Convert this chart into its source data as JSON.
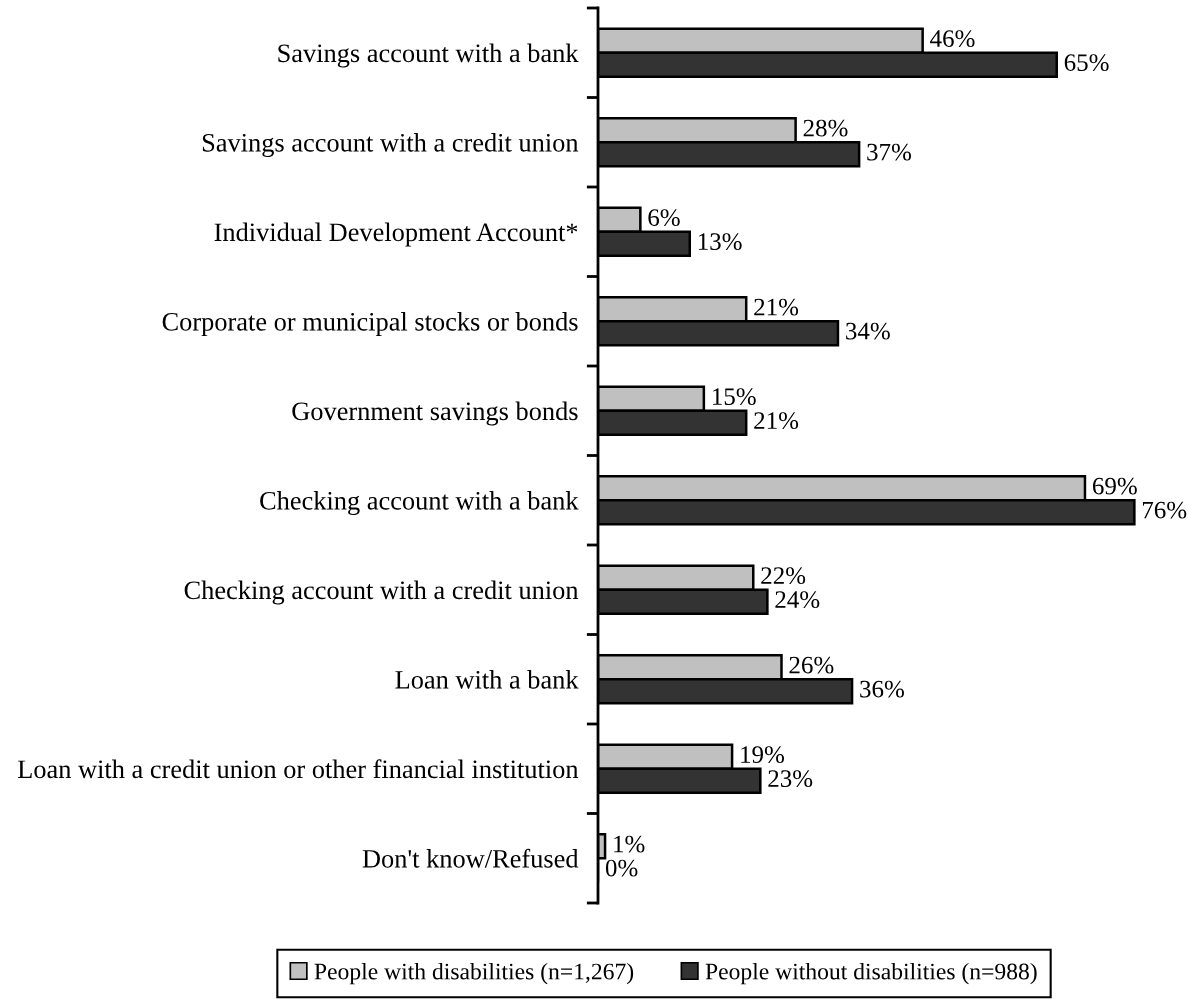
{
  "chart_data": {
    "type": "bar",
    "orientation": "horizontal",
    "categories": [
      "Savings account with a bank",
      "Savings account with a credit union",
      "Individual Development Account*",
      "Corporate or municipal stocks or bonds",
      "Government savings bonds",
      "Checking account with a bank",
      "Checking account with a credit union",
      "Loan with a bank",
      "Loan with a credit union or other financial institution",
      "Don't know/Refused"
    ],
    "series": [
      {
        "name": "People with disabilities (n=1,267)",
        "color": "#c0c0c0",
        "values": [
          46,
          28,
          6,
          21,
          15,
          69,
          22,
          26,
          19,
          1
        ],
        "value_labels": [
          "46%",
          "28%",
          "6%",
          "21%",
          "15%",
          "69%",
          "22%",
          "26%",
          "19%",
          "1%"
        ]
      },
      {
        "name": "People without disabilities (n=988)",
        "color": "#333333",
        "values": [
          65,
          37,
          13,
          34,
          21,
          76,
          24,
          36,
          23,
          0
        ],
        "value_labels": [
          "65%",
          "37%",
          "13%",
          "34%",
          "21%",
          "76%",
          "24%",
          "36%",
          "23%",
          "0%"
        ]
      }
    ],
    "legend": "bottom",
    "tick_labels": "y"
  }
}
